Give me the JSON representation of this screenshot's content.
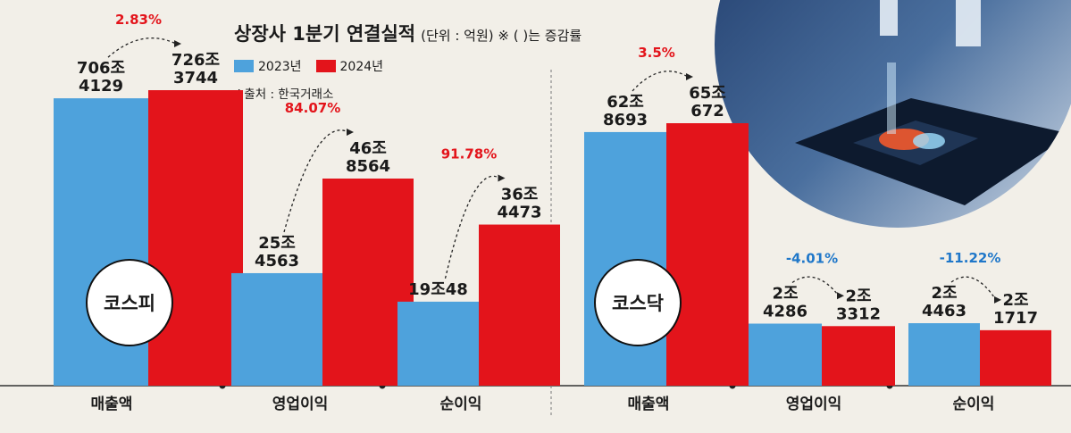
{
  "title": "상장사 1분기 연결실적",
  "unit_note": "(단위 : 억원) ※ ( )는 증감률",
  "source": "※출처 : 한국거래소",
  "colors": {
    "y2023": "#4ea2dc",
    "y2024": "#e3141b",
    "pct_up": "#e3141b",
    "pct_down": "#1f77c9"
  },
  "chart_data": {
    "type": "bar",
    "legend": [
      "2023년",
      "2024년"
    ],
    "legend_position": "top-left",
    "panels": [
      {
        "market": "코스피",
        "groups": [
          {
            "category": "매출액",
            "v2023": 7064129,
            "v2024": 7263744,
            "label2023": [
              "706조",
              "4129"
            ],
            "label2024": [
              "726조",
              "3744"
            ],
            "change": "2.83%"
          },
          {
            "category": "영업이익",
            "v2023": 254563,
            "v2024": 468564,
            "label2023": [
              "25조",
              "4563"
            ],
            "label2024": [
              "46조",
              "8564"
            ],
            "change": "84.07%"
          },
          {
            "category": "순이익",
            "v2023": 190048,
            "v2024": 364473,
            "label2023": [
              "19조48"
            ],
            "label2024": [
              "36조",
              "4473"
            ],
            "change": "91.78%"
          }
        ]
      },
      {
        "market": "코스닥",
        "groups": [
          {
            "category": "매출액",
            "v2023": 628693,
            "v2024": 650672,
            "label2023": [
              "62조",
              "8693"
            ],
            "label2024": [
              "65조",
              "672"
            ],
            "change": "3.5%"
          },
          {
            "category": "영업이익",
            "v2023": 24286,
            "v2024": 23312,
            "label2023": [
              "2조",
              "4286"
            ],
            "label2024": [
              "2조",
              "3312"
            ],
            "change": "-4.01%"
          },
          {
            "category": "순이익",
            "v2023": 24463,
            "v2024": 21717,
            "label2023": [
              "2조",
              "4463"
            ],
            "label2024": [
              "2조",
              "1717"
            ],
            "change": "-11.22%"
          }
        ]
      }
    ]
  }
}
